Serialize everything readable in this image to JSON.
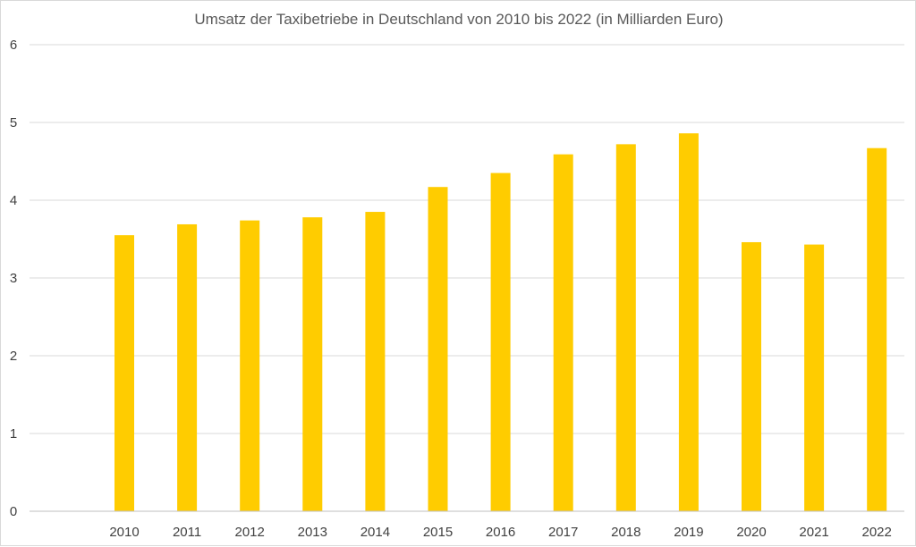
{
  "chart_data": {
    "type": "bar",
    "title": "Umsatz der Taxibetriebe in Deutschland von 2010 bis 2022 (in Milliarden Euro)",
    "xlabel": "",
    "ylabel": "",
    "categories": [
      "2010",
      "2011",
      "2012",
      "2013",
      "2014",
      "2015",
      "2016",
      "2017",
      "2018",
      "2019",
      "2020",
      "2021",
      "2022"
    ],
    "values": [
      3.55,
      3.69,
      3.74,
      3.78,
      3.85,
      4.17,
      4.35,
      4.59,
      4.72,
      4.86,
      3.46,
      3.43,
      4.67
    ],
    "ylim": [
      0,
      6
    ],
    "yticks": [
      "0",
      "1",
      "2",
      "3",
      "4",
      "5",
      "6"
    ],
    "grid": true,
    "legend": "none",
    "bar_color": "#ffcc00"
  }
}
